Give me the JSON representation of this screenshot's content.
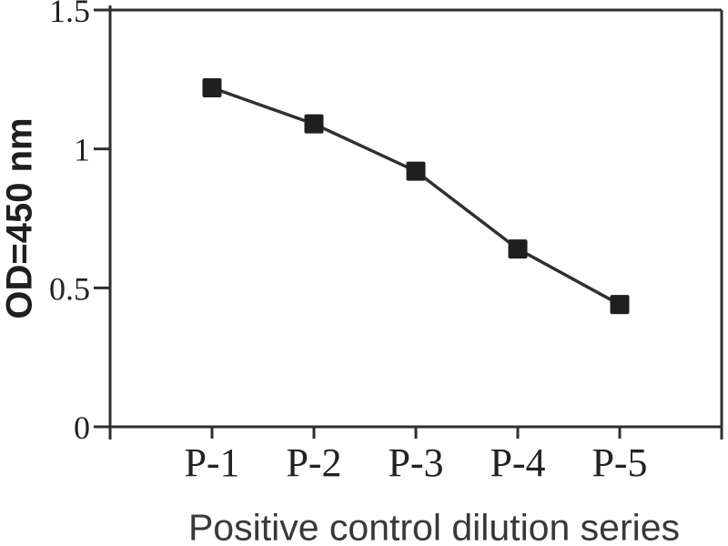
{
  "figure": {
    "background": "#ffffff",
    "axis_color": "#2e2e2e",
    "line_color": "#303030",
    "marker_color": "#1f1f1f",
    "tick_label_color": "#222222",
    "axis_label_color": "#1f1f1f",
    "xlabel_color": "#383838"
  },
  "chart_data": {
    "type": "line",
    "title": "",
    "categories": [
      "P-1",
      "P-2",
      "P-3",
      "P-4",
      "P-5"
    ],
    "values": [
      1.22,
      1.09,
      0.92,
      0.64,
      0.44
    ],
    "xlabel": "Positive control dilution series",
    "ylabel": "OD=450 nm",
    "ylim": [
      0,
      1.5
    ],
    "yticks": [
      0,
      0.5,
      1,
      1.5
    ],
    "ytick_labels": [
      "0",
      "0.5",
      "1",
      "1.5"
    ],
    "marker": "square",
    "grid": false,
    "legend": "none",
    "frame": "full"
  }
}
